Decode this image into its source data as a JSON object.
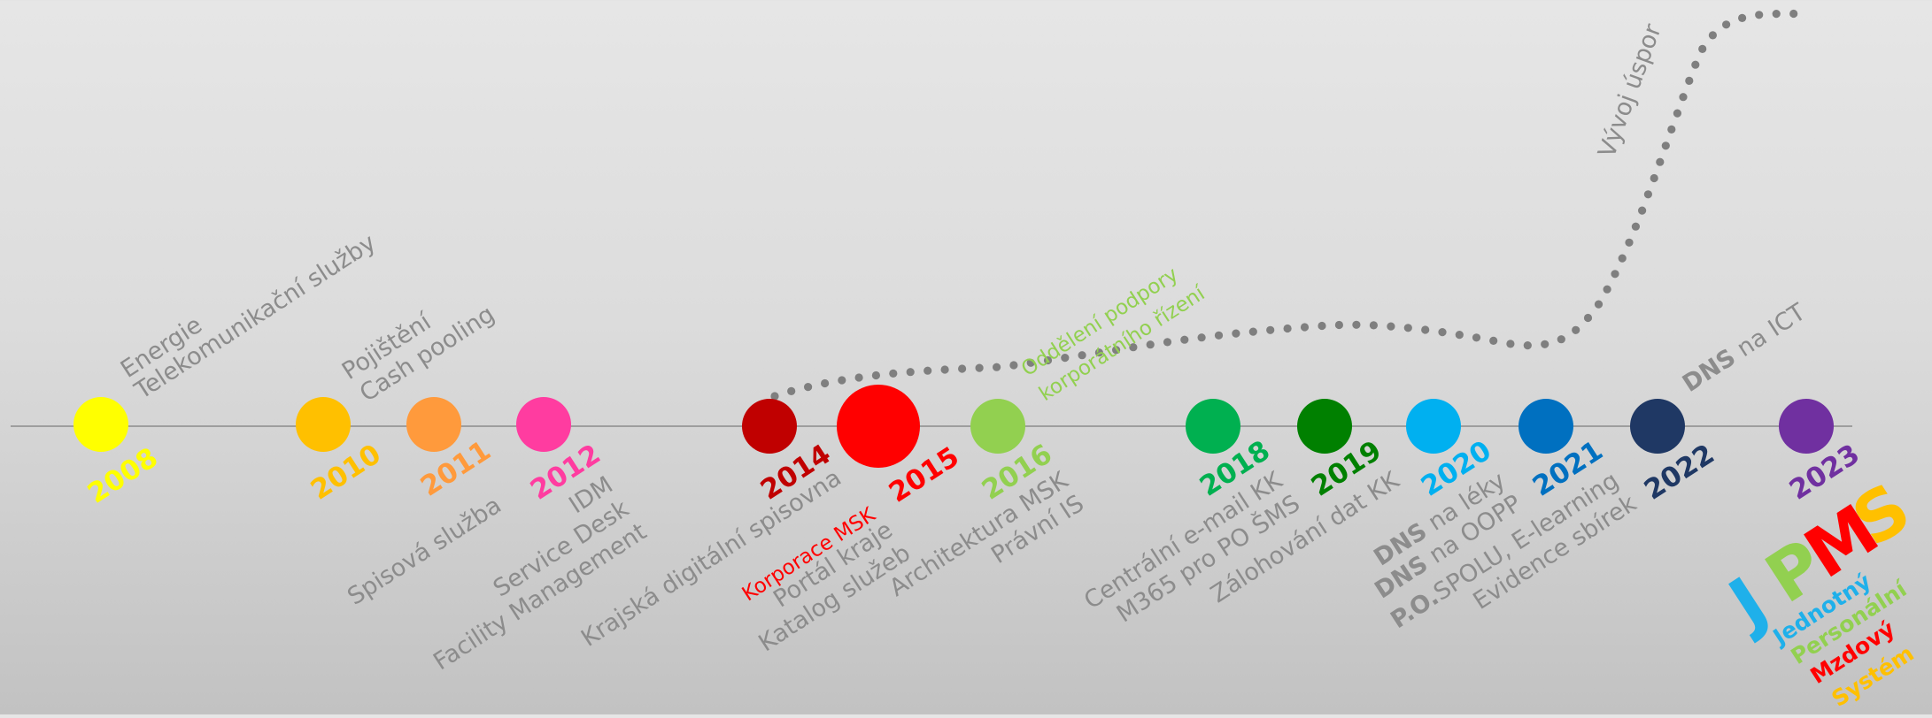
{
  "colors": {
    "axis": "#8c8c8c",
    "text_gray": "#8c8c8c",
    "dot_line": "#7f7f7f",
    "y2008": "#ffff00",
    "y2010": "#ffc000",
    "y2011": "#ff9a3c",
    "y2012": "#ff3ca0",
    "y2014": "#c00000",
    "y2015": "#ff0000",
    "y2016": "#92d050",
    "y2018": "#00b050",
    "y2019": "#008000",
    "y2020": "#00b0f0",
    "y2021": "#0070c0",
    "y2022": "#1f3864",
    "y2023": "#7030a0"
  },
  "milestones": {
    "m2008": {
      "year": "2008",
      "above": [
        "Energie",
        "Telekomunikační služby"
      ]
    },
    "m2010": {
      "year": "2010",
      "above": [
        "Pojištění",
        "Cash pooling"
      ]
    },
    "m2011": {
      "year": "2011",
      "below": [
        "Spisová služba"
      ]
    },
    "m2012": {
      "year": "2012",
      "below": [
        "IDM",
        "Service Desk",
        "Facility Management"
      ]
    },
    "m2014": {
      "year": "2014",
      "below": [
        "Krajská digitální spisovna"
      ]
    },
    "m2015": {
      "year": "2015",
      "below": [
        "Korporace MSK",
        "Portál kraje",
        "Katalog služeb"
      ]
    },
    "m2016": {
      "year": "2016",
      "above": [
        "Oddělení podpory",
        "korporátního řízení"
      ],
      "below": [
        "Architektura MSK",
        "Právní IS"
      ]
    },
    "m2018": {
      "year": "2018",
      "below": [
        "Centrální e-mail KK",
        "M365 pro PO ŠMS"
      ]
    },
    "m2019": {
      "year": "2019",
      "below": [
        "Zálohování dat KK"
      ]
    },
    "m2020": {
      "year": "2020",
      "below_b1": "DNS",
      "below_r1": " na léky",
      "below_b2": "DNS",
      "below_r2": " na OOPP"
    },
    "m2021": {
      "year": "2021",
      "below_b1": "P.O.",
      "below_r1": "SPOLU, E-learning",
      "below_2": "Evidence sbírek"
    },
    "m2022": {
      "year": "2022",
      "above_b": "DNS",
      "above_r": " na ICT"
    },
    "m2023": {
      "year": "2023"
    }
  },
  "savings_label": "Vývoj úspor",
  "jpms": {
    "letters": [
      "J",
      "P",
      "M",
      "S"
    ],
    "words": [
      "Jednotný",
      "Personální",
      "Mzdový",
      "Systém"
    ]
  }
}
